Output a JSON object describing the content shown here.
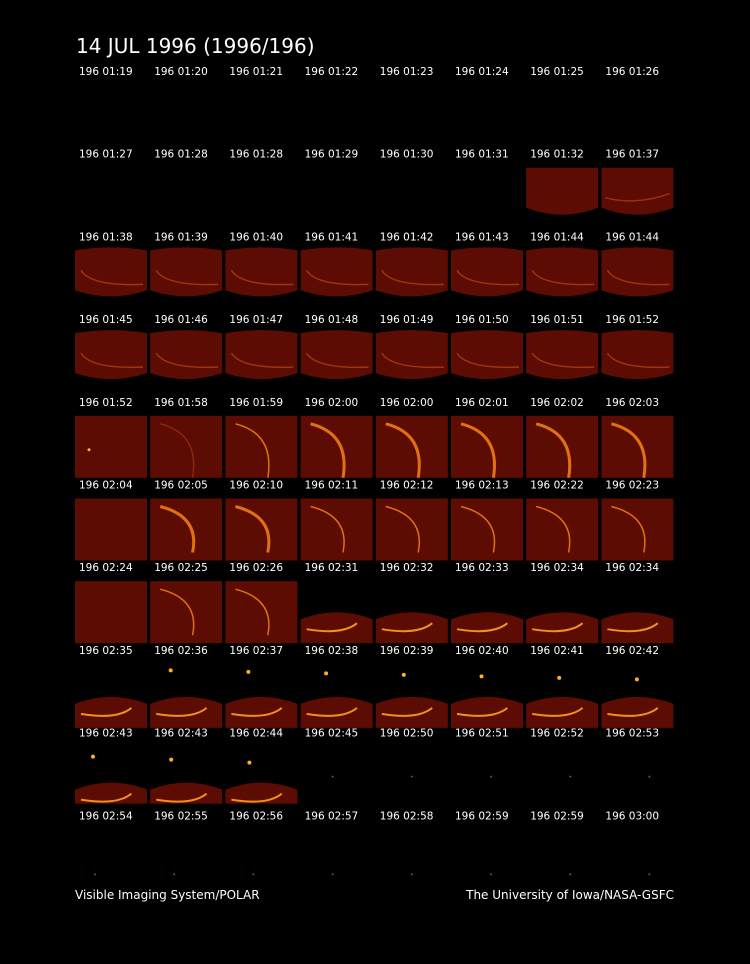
{
  "header": {
    "title": "14 JUL 1996  (1996/196)"
  },
  "grid": {
    "rows": [
      [
        "196 01:19",
        "196 01:20",
        "196 01:21",
        "196 01:22",
        "196 01:23",
        "196 01:24",
        "196 01:25",
        "196 01:26"
      ],
      [
        "196 01:27",
        "196 01:28",
        "196 01:28",
        "196 01:29",
        "196 01:30",
        "196 01:31",
        "196 01:32",
        "196 01:37"
      ],
      [
        "196 01:38",
        "196 01:39",
        "196 01:40",
        "196 01:41",
        "196 01:42",
        "196 01:43",
        "196 01:44",
        "196 01:44"
      ],
      [
        "196 01:45",
        "196 01:46",
        "196 01:47",
        "196 01:48",
        "196 01:49",
        "196 01:50",
        "196 01:51",
        "196 01:52"
      ],
      [
        "196 01:52",
        "196 01:58",
        "196 01:59",
        "196 02:00",
        "196 02:00",
        "196 02:01",
        "196 02:02",
        "196 02:03"
      ],
      [
        "196 02:04",
        "196 02:05",
        "196 02:10",
        "196 02:11",
        "196 02:12",
        "196 02:13",
        "196 02:22",
        "196 02:23"
      ],
      [
        "196 02:24",
        "196 02:25",
        "196 02:26",
        "196 02:31",
        "196 02:32",
        "196 02:33",
        "196 02:34",
        "196 02:34"
      ],
      [
        "196 02:35",
        "196 02:36",
        "196 02:37",
        "196 02:38",
        "196 02:39",
        "196 02:40",
        "196 02:41",
        "196 02:42"
      ],
      [
        "196 02:43",
        "196 02:43",
        "196 02:44",
        "196 02:45",
        "196 02:50",
        "196 02:51",
        "196 02:52",
        "196 02:53"
      ],
      [
        "196 02:54",
        "196 02:55",
        "196 02:56",
        "196 02:57",
        "196 02:58",
        "196 02:59",
        "196 02:59",
        "196 03:00"
      ]
    ]
  },
  "footer": {
    "left": "Visible Imaging System/POLAR",
    "right": "The University of Iowa/NASA-GSFC"
  }
}
